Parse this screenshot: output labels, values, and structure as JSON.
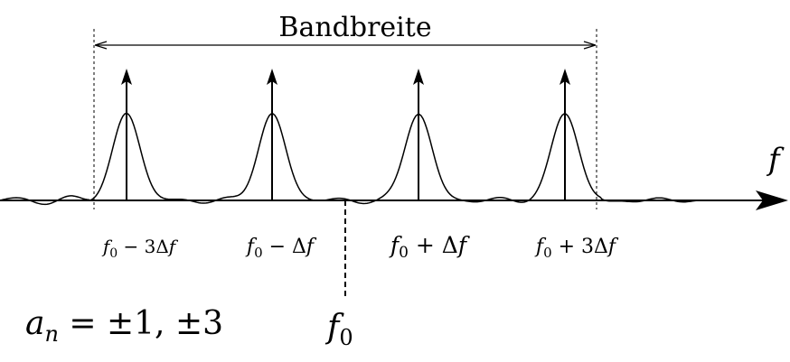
{
  "bandwidth_label": "Bandbreite",
  "axis_label": "f",
  "center_label": {
    "base": "f",
    "sub": "0"
  },
  "amplitude_label": {
    "base": "a",
    "sub": "n",
    "rest": " = ±1, ±3"
  },
  "carriers": [
    {
      "pre": "f",
      "sub": "0",
      "op": " − 3Δ",
      "var": "f"
    },
    {
      "pre": "f",
      "sub": "0",
      "op": " − Δ",
      "var": "f"
    },
    {
      "pre": "f",
      "sub": "0",
      "op": " + Δ",
      "var": "f"
    },
    {
      "pre": "f",
      "sub": "0",
      "op": " + 3Δ",
      "var": "f"
    }
  ]
}
